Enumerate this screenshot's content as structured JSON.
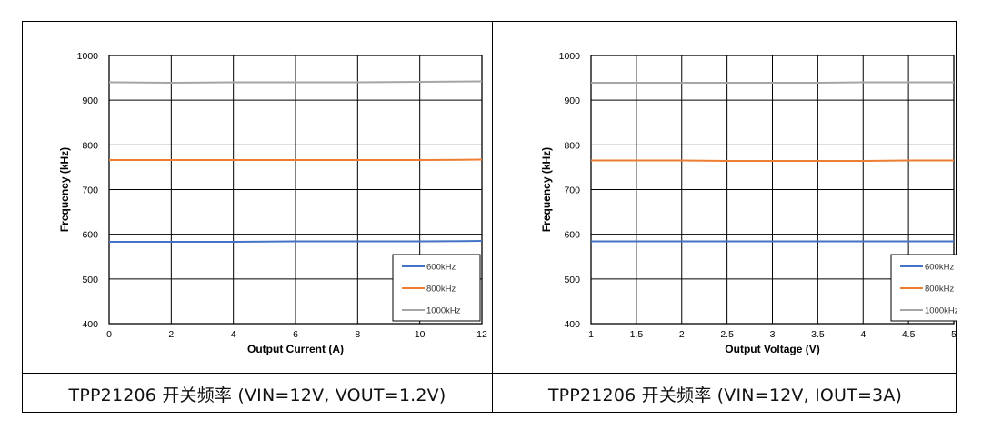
{
  "chart_data": [
    {
      "type": "line",
      "xlabel": "Output Current (A)",
      "ylabel": "Frequency (kHz)",
      "xlim": [
        0,
        12
      ],
      "ylim": [
        400,
        1000
      ],
      "xticks": [
        "0",
        "2",
        "4",
        "6",
        "8",
        "10",
        "12"
      ],
      "yticks": [
        "400",
        "500",
        "600",
        "700",
        "800",
        "900",
        "1000"
      ],
      "grid": true,
      "legend_position": "bottom-right",
      "series": [
        {
          "name": "600kHz",
          "color": "#4472C4",
          "x": [
            0,
            2,
            4,
            6,
            8,
            10,
            12
          ],
          "y": [
            583,
            583,
            583,
            584,
            584,
            584,
            585
          ]
        },
        {
          "name": "800kHz",
          "color": "#ED7D31",
          "x": [
            0,
            2,
            4,
            6,
            8,
            10,
            12
          ],
          "y": [
            766,
            766,
            766,
            766,
            766,
            766,
            767
          ]
        },
        {
          "name": "1000kHz",
          "color": "#A5A5A5",
          "x": [
            0,
            2,
            4,
            6,
            8,
            10,
            12
          ],
          "y": [
            940,
            939,
            940,
            940,
            940,
            941,
            942
          ]
        }
      ]
    },
    {
      "type": "line",
      "xlabel": "Output Voltage (V)",
      "ylabel": "Frequency (kHz)",
      "xlim": [
        1,
        5
      ],
      "ylim": [
        400,
        1000
      ],
      "xticks": [
        "1",
        "1.5",
        "2",
        "2.5",
        "3",
        "3.5",
        "4",
        "4.5",
        "5"
      ],
      "yticks": [
        "400",
        "500",
        "600",
        "700",
        "800",
        "900",
        "1000"
      ],
      "grid": true,
      "legend_position": "bottom-right",
      "series": [
        {
          "name": "600kHz",
          "color": "#4472C4",
          "x": [
            1,
            1.5,
            2,
            2.5,
            3,
            3.5,
            4,
            4.5,
            5
          ],
          "y": [
            584,
            584,
            584,
            584,
            584,
            584,
            584,
            584,
            584
          ]
        },
        {
          "name": "800kHz",
          "color": "#ED7D31",
          "x": [
            1,
            1.5,
            2,
            2.5,
            3,
            3.5,
            4,
            4.5,
            5
          ],
          "y": [
            765,
            765,
            765,
            764,
            764,
            764,
            764,
            765,
            765
          ]
        },
        {
          "name": "1000kHz",
          "color": "#A5A5A5",
          "x": [
            1,
            1.5,
            2,
            2.5,
            3,
            3.5,
            4,
            4.5,
            5
          ],
          "y": [
            939,
            939,
            939,
            939,
            939,
            939,
            940,
            940,
            940
          ]
        }
      ]
    }
  ],
  "captions": [
    "TPP21206  开关频率 (VIN=12V, VOUT=1.2V)",
    "TPP21206  开关频率 (VIN=12V, IOUT=3A)"
  ]
}
